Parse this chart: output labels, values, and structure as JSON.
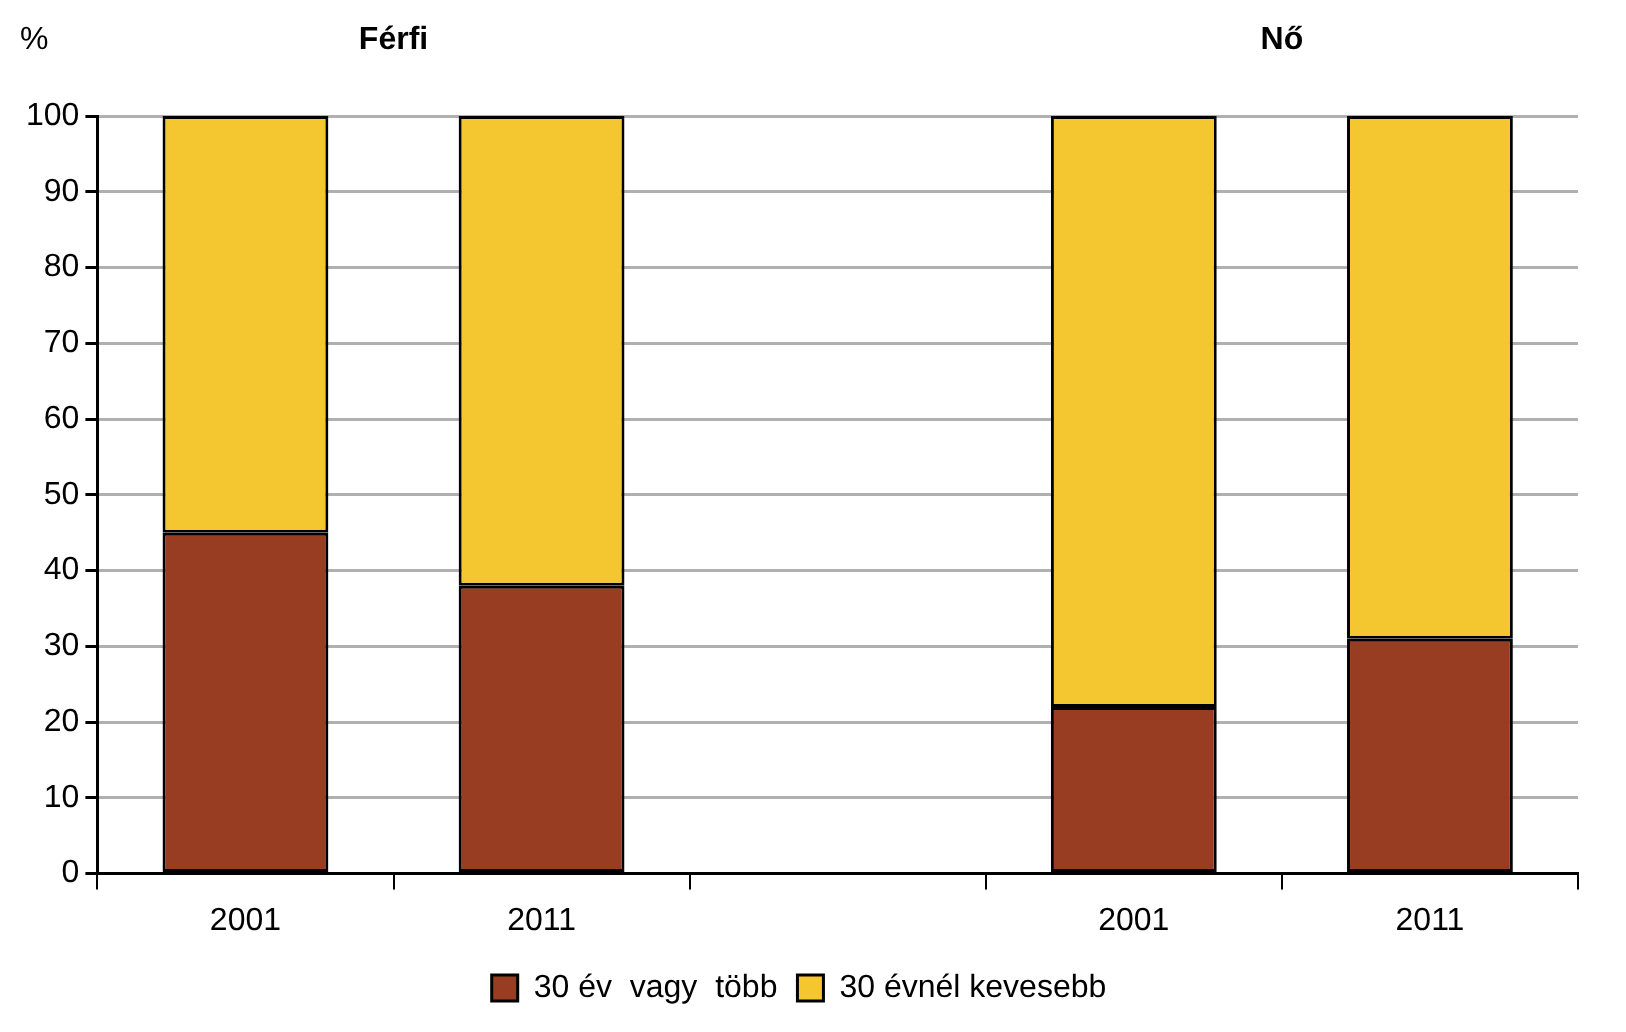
{
  "chart_data": {
    "type": "bar",
    "stacked": true,
    "ylabel": "%",
    "annotations": [
      "Férfi",
      "Nő"
    ],
    "categories": [
      "2001",
      "2011",
      null,
      "2001",
      "2011"
    ],
    "series": [
      {
        "name": "30 év  vagy  több",
        "color": "#983d21",
        "values": [
          45,
          38,
          null,
          22,
          31
        ]
      },
      {
        "name": "30 évnél kevesebb",
        "color": "#f4c62f",
        "values": [
          55,
          62,
          null,
          78,
          69
        ]
      }
    ],
    "ylim": [
      0,
      100
    ],
    "yticks": [
      0,
      10,
      20,
      30,
      40,
      50,
      60,
      70,
      80,
      90,
      100
    ],
    "grid": "y",
    "legend": "bottom"
  }
}
